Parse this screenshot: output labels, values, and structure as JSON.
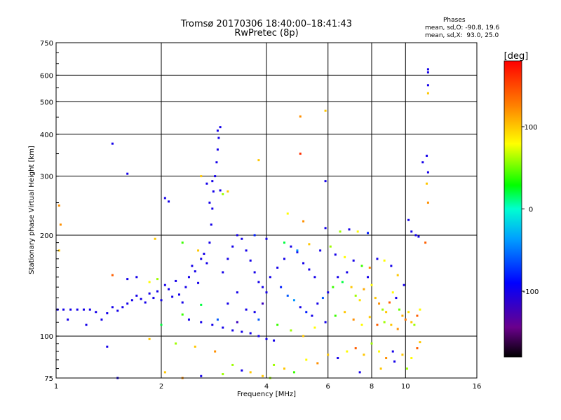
{
  "title": "Tromsø 20170306 18:40:00–18:41:43",
  "subtitle": "RwPretec (8p)",
  "stats": {
    "title": "Phases",
    "line_o": "mean, sd,O: -90.8, 19.6",
    "line_x": "mean, sd,X:  93.0, 25.0"
  },
  "colorbar": {
    "label": "[deg]",
    "ticks": [
      {
        "value": 100,
        "label": "100"
      },
      {
        "value": 0,
        "label": "0"
      },
      {
        "value": -100,
        "label": "-100"
      }
    ],
    "range": [
      -180,
      180
    ]
  },
  "chart_data": {
    "type": "scatter",
    "xlabel": "Frequency [MHz]",
    "ylabel": "Stationary phase Virtual Height [km]",
    "xscale": "log",
    "yscale": "log",
    "xlim": [
      1,
      16
    ],
    "ylim": [
      75,
      750
    ],
    "xticks": [
      1,
      2,
      4,
      6,
      8,
      10,
      16
    ],
    "yticks": [
      75,
      100,
      200,
      300,
      400,
      500,
      600,
      750
    ],
    "grid": true,
    "color_variable": "phase [deg]",
    "points": [
      [
        1.01,
        120,
        -100
      ],
      [
        1.05,
        120,
        -100
      ],
      [
        1.1,
        120,
        -100
      ],
      [
        1.15,
        120,
        -100
      ],
      [
        1.2,
        120,
        -100
      ],
      [
        1.25,
        120,
        -100
      ],
      [
        1.08,
        112,
        -100
      ],
      [
        1.3,
        118,
        -100
      ],
      [
        1.35,
        112,
        -100
      ],
      [
        1.4,
        117,
        -100
      ],
      [
        1.45,
        122,
        -100
      ],
      [
        1.5,
        119,
        -100
      ],
      [
        1.55,
        122,
        -100
      ],
      [
        1.6,
        125,
        -100
      ],
      [
        1.65,
        128,
        -100
      ],
      [
        1.7,
        132,
        -100
      ],
      [
        1.75,
        129,
        -100
      ],
      [
        1.8,
        126,
        -100
      ],
      [
        1.85,
        134,
        -100
      ],
      [
        1.9,
        130,
        -100
      ],
      [
        1.95,
        136,
        -100
      ],
      [
        2.0,
        128,
        -100
      ],
      [
        2.05,
        142,
        -100
      ],
      [
        2.1,
        138,
        -100
      ],
      [
        2.15,
        131,
        -100
      ],
      [
        2.2,
        146,
        -100
      ],
      [
        2.25,
        133,
        -100
      ],
      [
        2.3,
        126,
        -100
      ],
      [
        2.35,
        140,
        -100
      ],
      [
        2.4,
        150,
        -100
      ],
      [
        2.45,
        162,
        -100
      ],
      [
        2.5,
        156,
        -100
      ],
      [
        2.55,
        144,
        -100
      ],
      [
        2.6,
        170,
        -100
      ],
      [
        2.65,
        176,
        -100
      ],
      [
        2.7,
        165,
        -100
      ],
      [
        2.75,
        190,
        -100
      ],
      [
        2.78,
        215,
        -100
      ],
      [
        2.8,
        240,
        -100
      ],
      [
        2.82,
        270,
        -100
      ],
      [
        2.85,
        300,
        -100
      ],
      [
        2.88,
        330,
        -100
      ],
      [
        2.9,
        360,
        -100
      ],
      [
        2.92,
        390,
        -100
      ],
      [
        2.95,
        420,
        -100
      ],
      [
        2.9,
        410,
        -100
      ],
      [
        2.8,
        290,
        -100
      ],
      [
        2.75,
        250,
        -100
      ],
      [
        1.45,
        375,
        -100
      ],
      [
        1.6,
        305,
        -100
      ],
      [
        2.05,
        258,
        -100
      ],
      [
        2.1,
        252,
        -100
      ],
      [
        1.4,
        93,
        -100
      ],
      [
        1.22,
        108,
        -100
      ],
      [
        1.95,
        148,
        60
      ],
      [
        1.85,
        145,
        80
      ],
      [
        2.4,
        112,
        -100
      ],
      [
        2.6,
        110,
        -100
      ],
      [
        2.8,
        108,
        -100
      ],
      [
        3.0,
        106,
        -100
      ],
      [
        3.2,
        104,
        -100
      ],
      [
        3.4,
        103,
        -100
      ],
      [
        3.6,
        102,
        -100
      ],
      [
        3.8,
        100,
        -100
      ],
      [
        4.0,
        98,
        -100
      ],
      [
        4.2,
        97,
        -100
      ],
      [
        3.0,
        155,
        -100
      ],
      [
        3.1,
        170,
        -100
      ],
      [
        3.2,
        185,
        -100
      ],
      [
        3.3,
        200,
        -100
      ],
      [
        3.4,
        195,
        -100
      ],
      [
        3.5,
        180,
        -100
      ],
      [
        3.6,
        168,
        -100
      ],
      [
        3.7,
        155,
        -100
      ],
      [
        3.8,
        145,
        -100
      ],
      [
        3.9,
        140,
        -100
      ],
      [
        4.0,
        135,
        -100
      ],
      [
        3.5,
        120,
        -100
      ],
      [
        3.3,
        135,
        -100
      ],
      [
        3.1,
        125,
        -100
      ],
      [
        3.7,
        118,
        -100
      ],
      [
        3.9,
        125,
        -120
      ],
      [
        4.1,
        150,
        -100
      ],
      [
        4.3,
        160,
        -100
      ],
      [
        4.5,
        170,
        -100
      ],
      [
        4.7,
        185,
        -100
      ],
      [
        4.9,
        178,
        -100
      ],
      [
        5.1,
        165,
        -100
      ],
      [
        5.3,
        158,
        -100
      ],
      [
        5.5,
        150,
        -100
      ],
      [
        4.4,
        140,
        -80
      ],
      [
        4.6,
        132,
        -60
      ],
      [
        4.8,
        128,
        -40
      ],
      [
        5.0,
        122,
        -100
      ],
      [
        5.2,
        118,
        -80
      ],
      [
        5.4,
        115,
        -100
      ],
      [
        5.6,
        125,
        -100
      ],
      [
        5.8,
        130,
        -60
      ],
      [
        6.0,
        135,
        -100
      ],
      [
        6.2,
        140,
        40
      ],
      [
        6.4,
        150,
        -100
      ],
      [
        6.6,
        145,
        20
      ],
      [
        6.8,
        155,
        -100
      ],
      [
        7.0,
        140,
        100
      ],
      [
        7.2,
        132,
        60
      ],
      [
        7.4,
        128,
        90
      ],
      [
        7.6,
        138,
        110
      ],
      [
        7.8,
        150,
        -100
      ],
      [
        8.0,
        142,
        80
      ],
      [
        8.2,
        130,
        100
      ],
      [
        8.4,
        125,
        120
      ],
      [
        8.6,
        120,
        60
      ],
      [
        8.8,
        118,
        100
      ],
      [
        9.0,
        126,
        140
      ],
      [
        9.2,
        135,
        80
      ],
      [
        9.4,
        130,
        -100
      ],
      [
        9.6,
        120,
        50
      ],
      [
        9.8,
        115,
        110
      ],
      [
        10.0,
        112,
        130
      ],
      [
        10.2,
        118,
        90
      ],
      [
        10.4,
        110,
        100
      ],
      [
        10.6,
        108,
        60
      ],
      [
        10.8,
        115,
        140
      ],
      [
        11.0,
        120,
        80
      ],
      [
        10.2,
        222,
        -100
      ],
      [
        10.4,
        205,
        -100
      ],
      [
        10.7,
        200,
        -100
      ],
      [
        10.9,
        198,
        -100
      ],
      [
        11.2,
        330,
        -100
      ],
      [
        11.6,
        625,
        -100
      ],
      [
        11.6,
        612,
        -100
      ],
      [
        11.6,
        560,
        -100
      ],
      [
        11.6,
        530,
        100
      ],
      [
        11.5,
        345,
        -100
      ],
      [
        11.6,
        308,
        -100
      ],
      [
        11.5,
        285,
        100
      ],
      [
        11.6,
        250,
        120
      ],
      [
        11.4,
        190,
        140
      ],
      [
        5.9,
        470,
        100
      ],
      [
        5.0,
        452,
        120
      ],
      [
        5.0,
        350,
        160
      ],
      [
        5.9,
        290,
        -100
      ],
      [
        3.1,
        270,
        100
      ],
      [
        3.0,
        265,
        60
      ],
      [
        2.95,
        272,
        -100
      ],
      [
        4.6,
        232,
        80
      ],
      [
        5.1,
        220,
        120
      ],
      [
        5.9,
        210,
        -100
      ],
      [
        6.5,
        205,
        60
      ],
      [
        6.9,
        208,
        -100
      ],
      [
        7.3,
        205,
        80
      ],
      [
        7.8,
        203,
        -80
      ],
      [
        3.7,
        200,
        -80
      ],
      [
        4.0,
        195,
        -100
      ],
      [
        4.5,
        190,
        20
      ],
      [
        4.9,
        180,
        -40
      ],
      [
        5.3,
        188,
        100
      ],
      [
        5.7,
        180,
        -100
      ],
      [
        6.1,
        185,
        60
      ],
      [
        6.3,
        175,
        -100
      ],
      [
        6.7,
        172,
        80
      ],
      [
        7.1,
        168,
        -100
      ],
      [
        7.5,
        162,
        40
      ],
      [
        7.9,
        160,
        120
      ],
      [
        8.3,
        170,
        -100
      ],
      [
        8.7,
        168,
        80
      ],
      [
        9.1,
        162,
        -100
      ],
      [
        9.5,
        152,
        100
      ],
      [
        9.9,
        142,
        -100
      ],
      [
        4.2,
        82,
        60
      ],
      [
        4.5,
        80,
        100
      ],
      [
        4.8,
        78,
        40
      ],
      [
        5.2,
        85,
        80
      ],
      [
        5.6,
        83,
        120
      ],
      [
        6.0,
        88,
        100
      ],
      [
        6.4,
        86,
        -100
      ],
      [
        6.8,
        90,
        80
      ],
      [
        7.2,
        92,
        140
      ],
      [
        7.6,
        88,
        100
      ],
      [
        8.0,
        95,
        60
      ],
      [
        8.4,
        90,
        80
      ],
      [
        8.8,
        86,
        120
      ],
      [
        9.2,
        90,
        -100
      ],
      [
        9.8,
        88,
        100
      ],
      [
        10.4,
        86,
        80
      ],
      [
        10.8,
        92,
        140
      ],
      [
        11.0,
        96,
        100
      ],
      [
        3.6,
        78,
        100
      ],
      [
        3.2,
        82,
        60
      ],
      [
        2.85,
        90,
        120
      ],
      [
        2.5,
        93,
        100
      ],
      [
        2.2,
        95,
        60
      ],
      [
        1.85,
        98,
        100
      ],
      [
        2.0,
        108,
        20
      ],
      [
        2.3,
        116,
        40
      ],
      [
        2.6,
        124,
        20
      ],
      [
        2.9,
        112,
        -60
      ],
      [
        3.3,
        110,
        -120
      ],
      [
        3.8,
        112,
        -60
      ],
      [
        4.3,
        108,
        40
      ],
      [
        4.7,
        104,
        60
      ],
      [
        5.1,
        100,
        100
      ],
      [
        5.5,
        106,
        80
      ],
      [
        5.9,
        110,
        -100
      ],
      [
        6.3,
        115,
        40
      ],
      [
        6.7,
        118,
        100
      ],
      [
        7.1,
        112,
        120
      ],
      [
        7.5,
        108,
        80
      ],
      [
        7.9,
        114,
        100
      ],
      [
        8.3,
        108,
        140
      ],
      [
        8.7,
        110,
        60
      ],
      [
        9.1,
        108,
        100
      ],
      [
        9.5,
        105,
        120
      ],
      [
        1.02,
        245,
        120
      ],
      [
        1.03,
        215,
        120
      ],
      [
        1.02,
        180,
        100
      ],
      [
        1.45,
        152,
        140
      ],
      [
        1.6,
        148,
        -100
      ],
      [
        1.7,
        150,
        -100
      ],
      [
        2.55,
        180,
        100
      ],
      [
        2.3,
        190,
        40
      ],
      [
        1.92,
        195,
        100
      ],
      [
        3.8,
        335,
        100
      ],
      [
        2.6,
        300,
        100
      ],
      [
        2.7,
        285,
        -100
      ],
      [
        1.5,
        75,
        -100
      ],
      [
        2.05,
        78,
        100
      ],
      [
        2.3,
        75,
        120
      ],
      [
        2.6,
        76,
        -100
      ],
      [
        3.0,
        77,
        60
      ],
      [
        3.4,
        79,
        -100
      ],
      [
        3.9,
        76,
        100
      ],
      [
        4.1,
        75,
        60
      ],
      [
        7.4,
        78,
        -100
      ],
      [
        8.5,
        80,
        100
      ],
      [
        9.3,
        84,
        -100
      ],
      [
        10.1,
        80,
        60
      ]
    ]
  }
}
